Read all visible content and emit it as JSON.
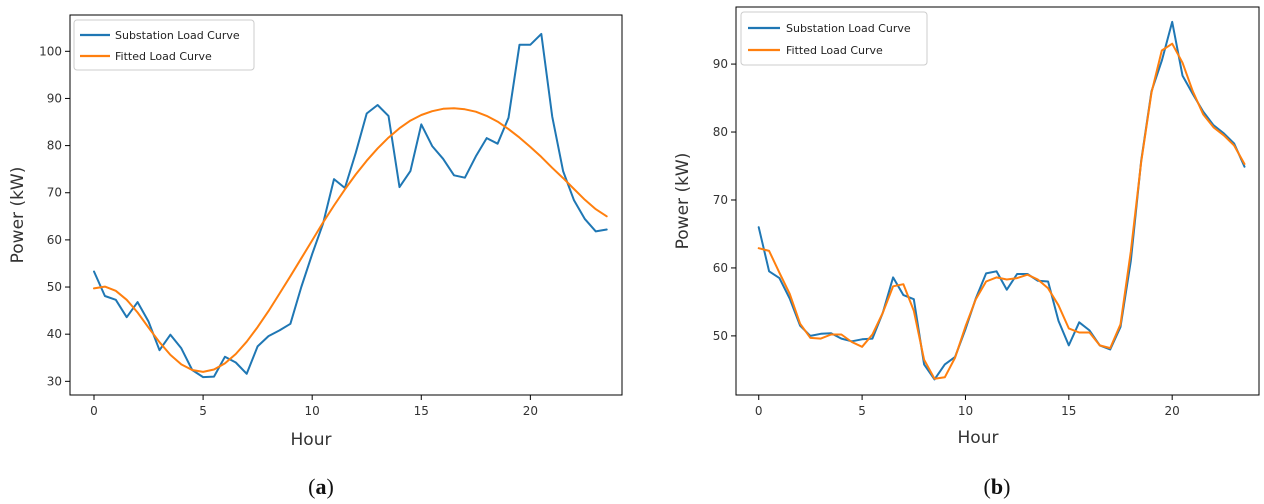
{
  "colors": {
    "series1": "#1f77b4",
    "series2": "#ff7f0e",
    "axis": "#000000"
  },
  "chart_data": [
    {
      "type": "line",
      "panel_label": {
        "open": "(",
        "letter": "a",
        "close": ")"
      },
      "xlabel": "Hour",
      "ylabel": "Power (kW)",
      "xlim": [
        -1.1,
        24.2
      ],
      "ylim": [
        27.1,
        107.7
      ],
      "xticks": [
        0,
        5,
        10,
        15,
        20
      ],
      "yticks": [
        30,
        40,
        50,
        60,
        70,
        80,
        90,
        100
      ],
      "legend_position": "top-left",
      "grid": false,
      "series": [
        {
          "name": "Substation Load Curve",
          "x": [
            0,
            0.5,
            1,
            1.5,
            2,
            2.5,
            3,
            3.5,
            4,
            4.5,
            5,
            5.5,
            6,
            6.5,
            7,
            7.5,
            8,
            8.5,
            9,
            9.5,
            10,
            10.5,
            11,
            11.5,
            12,
            12.5,
            13,
            13.5,
            14,
            14.5,
            15,
            15.5,
            16,
            16.5,
            17,
            17.5,
            18,
            18.5,
            19,
            19.5,
            20,
            20.5,
            21,
            21.5,
            22,
            22.5,
            23,
            23.5
          ],
          "values": [
            53.3,
            48.1,
            47.3,
            43.6,
            46.8,
            42.7,
            36.6,
            39.9,
            37.0,
            32.4,
            30.9,
            31.0,
            35.2,
            34.0,
            31.6,
            37.4,
            39.6,
            40.8,
            42.2,
            50.0,
            57.0,
            63.5,
            72.9,
            71.0,
            78.5,
            86.8,
            88.6,
            86.3,
            71.2,
            74.6,
            84.5,
            79.9,
            77.2,
            73.7,
            73.2,
            77.7,
            81.6,
            80.4,
            85.9,
            101.4,
            101.4,
            103.7,
            86.2,
            74.6,
            68.4,
            64.4,
            61.8,
            62.2
          ]
        },
        {
          "name": "Fitted Load Curve",
          "x": [
            0,
            0.5,
            1,
            1.5,
            2,
            2.5,
            3,
            3.5,
            4,
            4.5,
            5,
            5.5,
            6,
            6.5,
            7,
            7.5,
            8,
            8.5,
            9,
            9.5,
            10,
            10.5,
            11,
            11.5,
            12,
            12.5,
            13,
            13.5,
            14,
            14.5,
            15,
            15.5,
            16,
            16.5,
            17,
            17.5,
            18,
            18.5,
            19,
            19.5,
            20,
            20.5,
            21,
            21.5,
            22,
            22.5,
            23,
            23.5
          ],
          "values": [
            49.7,
            50.1,
            49.2,
            47.3,
            44.6,
            41.4,
            38.3,
            35.6,
            33.6,
            32.4,
            32.0,
            32.5,
            33.8,
            35.8,
            38.4,
            41.5,
            44.9,
            48.6,
            52.3,
            56.1,
            59.9,
            63.7,
            67.3,
            70.7,
            73.9,
            76.8,
            79.4,
            81.7,
            83.7,
            85.3,
            86.5,
            87.3,
            87.8,
            87.9,
            87.7,
            87.2,
            86.3,
            85.1,
            83.5,
            81.7,
            79.7,
            77.6,
            75.3,
            73.1,
            70.8,
            68.5,
            66.5,
            65.0
          ]
        }
      ]
    },
    {
      "type": "line",
      "panel_label": {
        "open": "(",
        "letter": "b",
        "close": ")"
      },
      "xlabel": "Hour",
      "ylabel": "Power (kW)",
      "xlim": [
        -1.1,
        24.2
      ],
      "ylim": [
        41.3,
        98.4
      ],
      "xticks": [
        0,
        5,
        10,
        15,
        20
      ],
      "yticks": [
        50,
        60,
        70,
        80,
        90
      ],
      "legend_position": "top-left",
      "grid": false,
      "series": [
        {
          "name": "Substation Load Curve",
          "x": [
            0,
            0.5,
            1,
            1.5,
            2,
            2.5,
            3,
            3.5,
            4,
            4.5,
            5,
            5.5,
            6,
            6.5,
            7,
            7.5,
            8,
            8.5,
            9,
            9.5,
            10,
            10.5,
            11,
            11.5,
            12,
            12.5,
            13,
            13.5,
            14,
            14.5,
            15,
            15.5,
            16,
            16.5,
            17,
            17.5,
            18,
            18.5,
            19,
            19.5,
            20,
            20.5,
            21,
            21.5,
            22,
            22.5,
            23,
            23.5
          ],
          "values": [
            66.0,
            59.5,
            58.5,
            55.5,
            51.5,
            50.0,
            50.3,
            50.4,
            49.6,
            49.2,
            49.5,
            49.6,
            53.4,
            58.6,
            56.0,
            55.4,
            45.8,
            43.6,
            45.8,
            46.9,
            51.0,
            55.5,
            59.2,
            59.5,
            56.8,
            59.1,
            59.1,
            58.1,
            58.0,
            52.2,
            48.6,
            52.0,
            50.8,
            48.6,
            48.0,
            51.3,
            61.0,
            75.8,
            86.0,
            90.5,
            96.2,
            88.3,
            85.6,
            83.0,
            81.0,
            79.8,
            78.3,
            74.9
          ]
        },
        {
          "name": "Fitted Load Curve",
          "x": [
            0,
            0.5,
            1,
            1.5,
            2,
            2.5,
            3,
            3.5,
            4,
            4.5,
            5,
            5.5,
            6,
            6.5,
            7,
            7.5,
            8,
            8.5,
            9,
            9.5,
            10,
            10.5,
            11,
            11.5,
            12,
            12.5,
            13,
            13.5,
            14,
            14.5,
            15,
            15.5,
            16,
            16.5,
            17,
            17.5,
            18,
            18.5,
            19,
            19.5,
            20,
            20.5,
            21,
            21.5,
            22,
            22.5,
            23,
            23.5
          ],
          "values": [
            62.9,
            62.5,
            59.3,
            56.2,
            51.8,
            49.7,
            49.6,
            50.2,
            50.2,
            49.1,
            48.4,
            50.2,
            53.4,
            57.3,
            57.6,
            53.7,
            46.5,
            43.7,
            43.9,
            46.8,
            51.4,
            55.4,
            58.0,
            58.6,
            58.3,
            58.5,
            59.0,
            58.3,
            57.0,
            54.5,
            51.1,
            50.5,
            50.5,
            48.6,
            48.2,
            51.7,
            62.4,
            75.6,
            85.8,
            92.0,
            93.0,
            90.2,
            86.0,
            82.6,
            80.7,
            79.5,
            78.0,
            75.3
          ]
        }
      ]
    }
  ]
}
